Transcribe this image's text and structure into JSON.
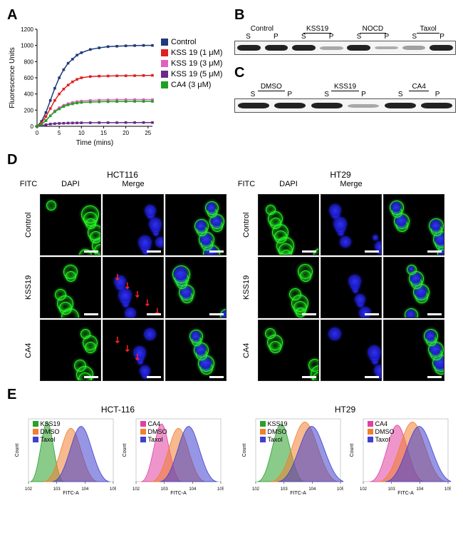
{
  "panelA": {
    "label": "A",
    "type": "line",
    "xlabel": "Time (mins)",
    "ylabel": "Fluorescence Units",
    "xlim": [
      0,
      26
    ],
    "ylim": [
      0,
      1200
    ],
    "xtick_step": 5,
    "ytick_step": 200,
    "title_fontsize": 12,
    "label_fontsize": 10,
    "background_color": "#ffffff",
    "grid_color": "#ffffff",
    "marker": "square",
    "marker_size": 4,
    "line_width": 1.5,
    "series": [
      {
        "name": "Control",
        "color": "#1f3a7a",
        "x": [
          0,
          1,
          2,
          3,
          4,
          5,
          6,
          7,
          8,
          9,
          10,
          12,
          14,
          16,
          18,
          20,
          22,
          24,
          26
        ],
        "y": [
          0,
          60,
          170,
          320,
          470,
          600,
          700,
          780,
          830,
          880,
          910,
          950,
          970,
          985,
          990,
          995,
          998,
          1000,
          1000
        ]
      },
      {
        "name": "KSS 19 (1 μM)",
        "color": "#e02020",
        "x": [
          0,
          1,
          2,
          3,
          4,
          5,
          6,
          7,
          8,
          9,
          10,
          12,
          14,
          16,
          18,
          20,
          22,
          24,
          26
        ],
        "y": [
          0,
          40,
          120,
          220,
          320,
          400,
          460,
          510,
          550,
          580,
          600,
          615,
          620,
          622,
          624,
          625,
          626,
          628,
          630
        ]
      },
      {
        "name": "KSS 19 (3 μM)",
        "color": "#e060c0",
        "x": [
          0,
          1,
          2,
          3,
          4,
          5,
          6,
          7,
          8,
          9,
          10,
          12,
          14,
          16,
          18,
          20,
          22,
          24,
          26
        ],
        "y": [
          0,
          25,
          70,
          130,
          190,
          230,
          260,
          280,
          295,
          305,
          312,
          320,
          324,
          326,
          328,
          330,
          330,
          330,
          330
        ]
      },
      {
        "name": "KSS 19 (5 μM)",
        "color": "#6a2a8a",
        "x": [
          0,
          1,
          2,
          3,
          4,
          5,
          6,
          7,
          8,
          9,
          10,
          12,
          14,
          16,
          18,
          20,
          22,
          24,
          26
        ],
        "y": [
          0,
          10,
          20,
          28,
          33,
          36,
          38,
          40,
          41,
          42,
          43,
          44,
          45,
          45,
          45,
          46,
          46,
          46,
          46
        ]
      },
      {
        "name": "CA4 (3 μM)",
        "color": "#20a020",
        "x": [
          0,
          1,
          2,
          3,
          4,
          5,
          6,
          7,
          8,
          9,
          10,
          12,
          14,
          16,
          18,
          20,
          22,
          24,
          26
        ],
        "y": [
          0,
          25,
          70,
          130,
          180,
          215,
          245,
          265,
          278,
          288,
          295,
          300,
          303,
          305,
          306,
          307,
          308,
          308,
          308
        ]
      }
    ]
  },
  "panelB": {
    "label": "B",
    "groups": [
      "Control",
      "KSS19",
      "NOCD",
      "Taxol"
    ],
    "underlined": [
      false,
      true,
      true,
      true
    ],
    "sublabels": [
      "S",
      "P",
      "S",
      "P",
      "S",
      "P",
      "S",
      "P"
    ],
    "band_intensity": [
      1.0,
      1.0,
      1.0,
      0.25,
      1.0,
      0.22,
      0.3,
      1.0
    ]
  },
  "panelC": {
    "label": "C",
    "groups": [
      "DMSO",
      "KSS19",
      "CA4"
    ],
    "underlined": [
      true,
      true,
      true
    ],
    "sublabels": [
      "S",
      "P",
      "S",
      "P",
      "S",
      "P"
    ],
    "band_intensity": [
      1.0,
      1.0,
      1.0,
      0.25,
      1.0,
      1.0
    ]
  },
  "panelD": {
    "label": "D",
    "cell_lines": [
      "HCT116",
      "HT29"
    ],
    "columns": [
      "FITC",
      "DAPI",
      "Merge"
    ],
    "rows": [
      "Control",
      "KSS19",
      "CA4"
    ],
    "fitc_color": "#28ff28",
    "dapi_color": "#3232ff",
    "arrow_color": "#ff2222",
    "background": "#000000",
    "scalebar_um": 50
  },
  "panelE": {
    "label": "E",
    "cell_lines": [
      "HCT-116",
      "HT29"
    ],
    "xlabel": "FITC-A",
    "ylabel": "Count",
    "xlog": true,
    "xlim": [
      100,
      100000
    ],
    "plots": [
      {
        "series": [
          {
            "name": "KSS19",
            "color": "#2aa02a",
            "peak_x": 0.22,
            "height": 0.95,
            "width": 0.1
          },
          {
            "name": "DMSO",
            "color": "#f08030",
            "peak_x": 0.5,
            "height": 0.85,
            "width": 0.16
          },
          {
            "name": "Taxol",
            "color": "#4040d0",
            "peak_x": 0.62,
            "height": 0.88,
            "width": 0.17
          }
        ]
      },
      {
        "series": [
          {
            "name": "CA4",
            "color": "#e040a0",
            "peak_x": 0.3,
            "height": 0.92,
            "width": 0.12
          },
          {
            "name": "DMSO",
            "color": "#f08030",
            "peak_x": 0.5,
            "height": 0.85,
            "width": 0.16
          },
          {
            "name": "Taxol",
            "color": "#4040d0",
            "peak_x": 0.62,
            "height": 0.88,
            "width": 0.17
          }
        ]
      },
      {
        "series": [
          {
            "name": "KSS19",
            "color": "#2aa02a",
            "peak_x": 0.3,
            "height": 0.92,
            "width": 0.14
          },
          {
            "name": "DMSO",
            "color": "#f08030",
            "peak_x": 0.58,
            "height": 0.95,
            "width": 0.2
          },
          {
            "name": "Taxol",
            "color": "#4040d0",
            "peak_x": 0.66,
            "height": 0.88,
            "width": 0.2
          }
        ]
      },
      {
        "series": [
          {
            "name": "CA4",
            "color": "#e040a0",
            "peak_x": 0.4,
            "height": 0.9,
            "width": 0.16
          },
          {
            "name": "DMSO",
            "color": "#f08030",
            "peak_x": 0.58,
            "height": 0.95,
            "width": 0.2
          },
          {
            "name": "Taxol",
            "color": "#4040d0",
            "peak_x": 0.66,
            "height": 0.88,
            "width": 0.2
          }
        ]
      }
    ]
  }
}
